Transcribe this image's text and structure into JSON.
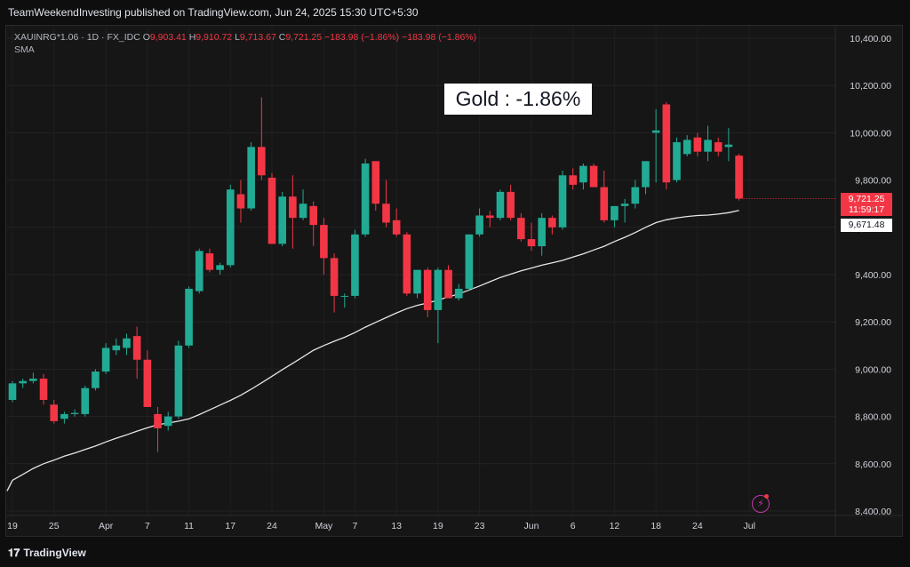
{
  "header": {
    "publish_line": "TeamWeekendInvesting published on TradingView.com, Jun 24, 2025 15:30 UTC+5:30"
  },
  "legend": {
    "symbol": "XAUINRG*1.06 · 1D · FX_IDC",
    "o_label": "O",
    "o_value": "9,903.41",
    "h_label": "H",
    "h_value": "9,910.72",
    "l_label": "L",
    "l_value": "9,713.67",
    "c_label": "C",
    "c_value": "9,721.25",
    "change_1": "−183.98 (−1.86%)",
    "change_2": "−183.98 (−1.86%)",
    "indicator": "SMA"
  },
  "annotation": "Gold : -1.86%",
  "price_tags": {
    "last_price": "9,721.25",
    "countdown": "11:59:17",
    "sma_value": "9,671.48"
  },
  "footer": {
    "logo_text": "TradingView"
  },
  "colors": {
    "up": "#22ab94",
    "down": "#f23645",
    "sma": "#e6e6e6",
    "background": "#161616"
  },
  "icons": {
    "flash": "lightning-icon",
    "logo": "tradingview-logo-icon"
  },
  "chart_data": {
    "type": "candlestick",
    "title": "",
    "ylim": [
      8400,
      10500
    ],
    "y_ticks": [
      "10,400.00",
      "10,200.00",
      "10,000.00",
      "9,800.00",
      "9,600.00",
      "9,400.00",
      "9,200.00",
      "9,000.00",
      "8,800.00",
      "8,600.00",
      "8,400.00"
    ],
    "y_tick_values": [
      10400,
      10200,
      10000,
      9800,
      9600,
      9400,
      9200,
      9000,
      8800,
      8600,
      8400
    ],
    "x_tick_labels": [
      {
        "label": "19",
        "index": 0
      },
      {
        "label": "25",
        "index": 4
      },
      {
        "label": "Apr",
        "index": 9
      },
      {
        "label": "7",
        "index": 13
      },
      {
        "label": "11",
        "index": 17
      },
      {
        "label": "17",
        "index": 21
      },
      {
        "label": "24",
        "index": 25
      },
      {
        "label": "May",
        "index": 30
      },
      {
        "label": "7",
        "index": 33
      },
      {
        "label": "13",
        "index": 37
      },
      {
        "label": "19",
        "index": 41
      },
      {
        "label": "23",
        "index": 45
      },
      {
        "label": "Jun",
        "index": 50
      },
      {
        "label": "6",
        "index": 54
      },
      {
        "label": "12",
        "index": 58
      },
      {
        "label": "18",
        "index": 62
      },
      {
        "label": "24",
        "index": 66
      },
      {
        "label": "Jul",
        "index": 71
      }
    ],
    "series": [
      {
        "name": "XAUINRG*1.06",
        "type": "candlestick",
        "ohlc": [
          [
            8870,
            8950,
            8860,
            8940
          ],
          [
            8940,
            8960,
            8920,
            8950
          ],
          [
            8950,
            8985,
            8940,
            8960
          ],
          [
            8960,
            8980,
            8850,
            8870
          ],
          [
            8850,
            8870,
            8770,
            8780
          ],
          [
            8790,
            8820,
            8770,
            8810
          ],
          [
            8810,
            8830,
            8800,
            8815
          ],
          [
            8810,
            8930,
            8800,
            8920
          ],
          [
            8920,
            9000,
            8910,
            8990
          ],
          [
            8990,
            9110,
            8980,
            9090
          ],
          [
            9080,
            9130,
            9060,
            9100
          ],
          [
            9090,
            9150,
            9060,
            9130
          ],
          [
            9140,
            9180,
            8960,
            9040
          ],
          [
            9040,
            9080,
            8840,
            8840
          ],
          [
            8810,
            8840,
            8650,
            8750
          ],
          [
            8760,
            8820,
            8740,
            8800
          ],
          [
            8800,
            9120,
            8790,
            9100
          ],
          [
            9100,
            9350,
            9090,
            9340
          ],
          [
            9330,
            9510,
            9320,
            9500
          ],
          [
            9490,
            9510,
            9410,
            9420
          ],
          [
            9420,
            9450,
            9400,
            9440
          ],
          [
            9440,
            9780,
            9430,
            9760
          ],
          [
            9740,
            9800,
            9620,
            9680
          ],
          [
            9680,
            9960,
            9670,
            9940
          ],
          [
            9940,
            10150,
            9800,
            9820
          ],
          [
            9810,
            9830,
            9530,
            9530
          ],
          [
            9530,
            9750,
            9520,
            9730
          ],
          [
            9730,
            9820,
            9510,
            9640
          ],
          [
            9640,
            9760,
            9630,
            9700
          ],
          [
            9690,
            9710,
            9520,
            9610
          ],
          [
            9610,
            9640,
            9400,
            9470
          ],
          [
            9470,
            9490,
            9240,
            9310
          ],
          [
            9310,
            9320,
            9260,
            9310
          ],
          [
            9310,
            9590,
            9300,
            9570
          ],
          [
            9570,
            9890,
            9560,
            9870
          ],
          [
            9880,
            9880,
            9670,
            9700
          ],
          [
            9700,
            9800,
            9600,
            9620
          ],
          [
            9630,
            9680,
            9560,
            9570
          ],
          [
            9570,
            9580,
            9310,
            9320
          ],
          [
            9320,
            9420,
            9300,
            9420
          ],
          [
            9420,
            9430,
            9220,
            9250
          ],
          [
            9250,
            9430,
            9110,
            9420
          ],
          [
            9420,
            9440,
            9300,
            9300
          ],
          [
            9300,
            9360,
            9290,
            9340
          ],
          [
            9340,
            9570,
            9330,
            9570
          ],
          [
            9570,
            9680,
            9560,
            9650
          ],
          [
            9650,
            9670,
            9600,
            9640
          ],
          [
            9640,
            9760,
            9630,
            9750
          ],
          [
            9750,
            9780,
            9630,
            9640
          ],
          [
            9640,
            9660,
            9540,
            9550
          ],
          [
            9550,
            9620,
            9500,
            9520
          ],
          [
            9520,
            9660,
            9480,
            9640
          ],
          [
            9640,
            9650,
            9570,
            9600
          ],
          [
            9600,
            9840,
            9590,
            9820
          ],
          [
            9820,
            9850,
            9760,
            9780
          ],
          [
            9790,
            9870,
            9760,
            9860
          ],
          [
            9860,
            9870,
            9770,
            9770
          ],
          [
            9770,
            9840,
            9620,
            9630
          ],
          [
            9630,
            9680,
            9600,
            9690
          ],
          [
            9690,
            9720,
            9620,
            9700
          ],
          [
            9700,
            9800,
            9680,
            9770
          ],
          [
            9770,
            9870,
            9740,
            9880
          ],
          [
            10000,
            10100,
            9790,
            10010
          ],
          [
            10120,
            10130,
            9760,
            9790
          ],
          [
            9800,
            9980,
            9790,
            9960
          ],
          [
            9910,
            9990,
            9900,
            9970
          ],
          [
            9980,
            10000,
            9900,
            9920
          ],
          [
            9920,
            10030,
            9880,
            9970
          ],
          [
            9960,
            9980,
            9900,
            9920
          ],
          [
            9940,
            10020,
            9880,
            9950
          ],
          [
            9903.41,
            9910.72,
            9713.67,
            9721.25
          ]
        ]
      },
      {
        "name": "SMA",
        "type": "line",
        "values": [
          8530,
          8555,
          8580,
          8600,
          8615,
          8632,
          8645,
          8660,
          8675,
          8692,
          8708,
          8722,
          8738,
          8752,
          8765,
          8772,
          8780,
          8790,
          8808,
          8828,
          8848,
          8868,
          8890,
          8915,
          8942,
          8970,
          8998,
          9025,
          9052,
          9080,
          9100,
          9118,
          9135,
          9155,
          9178,
          9198,
          9218,
          9238,
          9256,
          9270,
          9280,
          9292,
          9306,
          9318,
          9335,
          9352,
          9370,
          9388,
          9402,
          9416,
          9428,
          9440,
          9450,
          9460,
          9474,
          9488,
          9504,
          9520,
          9540,
          9558,
          9578,
          9600,
          9620,
          9632,
          9640,
          9646,
          9650,
          9652,
          9656,
          9662,
          9671.48
        ]
      }
    ],
    "grid": true,
    "legend_position": "top-left"
  }
}
